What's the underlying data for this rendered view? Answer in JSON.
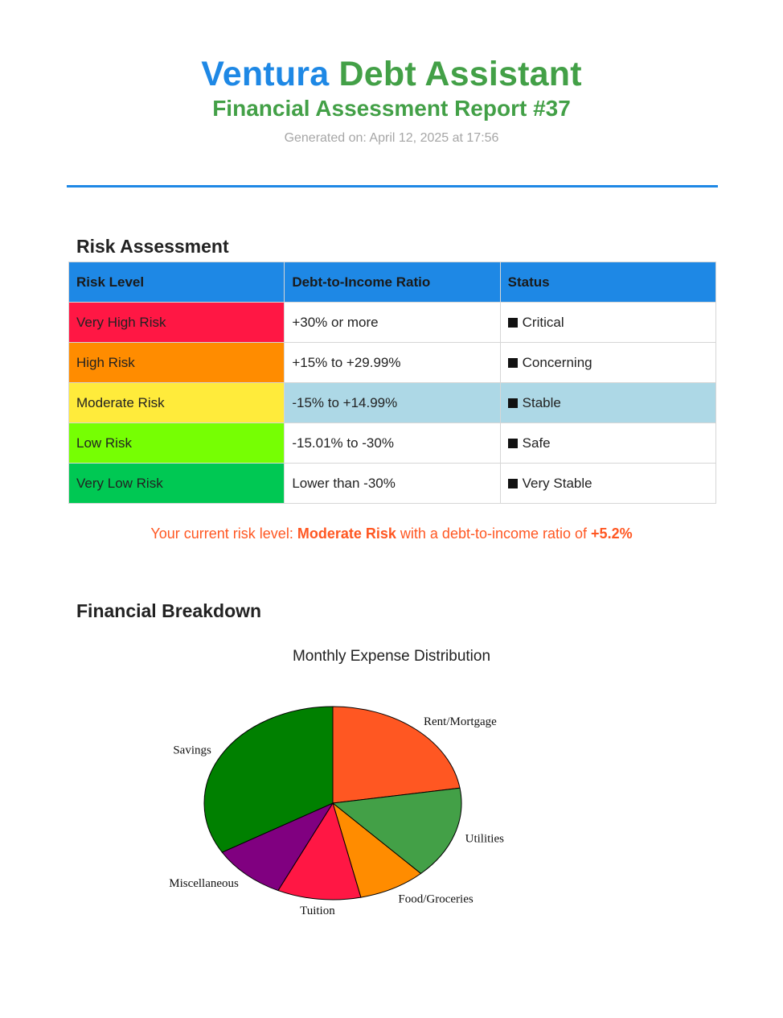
{
  "header": {
    "brand": "Ventura",
    "product": "Debt Assistant",
    "report_title": "Financial Assessment Report #37",
    "generated": "Generated on: April 12, 2025 at 17:56"
  },
  "risk_section": {
    "title": "Risk Assessment",
    "columns": [
      "Risk Level",
      "Debt-to-Income Ratio",
      "Status"
    ],
    "rows": [
      {
        "level": "Very High Risk",
        "ratio": "+30% or more",
        "status": "Critical",
        "color": "#ff1744",
        "highlight": false
      },
      {
        "level": "High Risk",
        "ratio": "+15% to +29.99%",
        "status": "Concerning",
        "color": "#ff8c00",
        "highlight": false
      },
      {
        "level": "Moderate Risk",
        "ratio": "-15% to +14.99%",
        "status": "Stable",
        "color": "#ffeb3b",
        "highlight": true
      },
      {
        "level": "Low Risk",
        "ratio": "-15.01% to -30%",
        "status": "Safe",
        "color": "#76ff03",
        "highlight": false
      },
      {
        "level": "Very Low Risk",
        "ratio": "Lower than -30%",
        "status": "Very Stable",
        "color": "#00c853",
        "highlight": false
      }
    ],
    "highlight_color": "#add8e6",
    "current": {
      "prefix": "Your current risk level:",
      "level": "Moderate Risk",
      "middle": "with a debt-to-income ratio of",
      "ratio": "+5.2%"
    }
  },
  "breakdown_section": {
    "title": "Financial Breakdown"
  },
  "chart_data": {
    "type": "pie",
    "title": "Monthly Expense Distribution",
    "slices": [
      {
        "label": "Rent/Mortgage",
        "value": 22.5,
        "color": "#ff5722"
      },
      {
        "label": "Utilities",
        "value": 15.5,
        "color": "#43a047"
      },
      {
        "label": "Food/Groceries",
        "value": 8.5,
        "color": "#ff8c00"
      },
      {
        "label": "Tuition",
        "value": 10.5,
        "color": "#ff1744"
      },
      {
        "label": "Miscellaneous",
        "value": 9.5,
        "color": "#800080"
      },
      {
        "label": "Savings",
        "value": 33.5,
        "color": "#008000"
      }
    ]
  }
}
